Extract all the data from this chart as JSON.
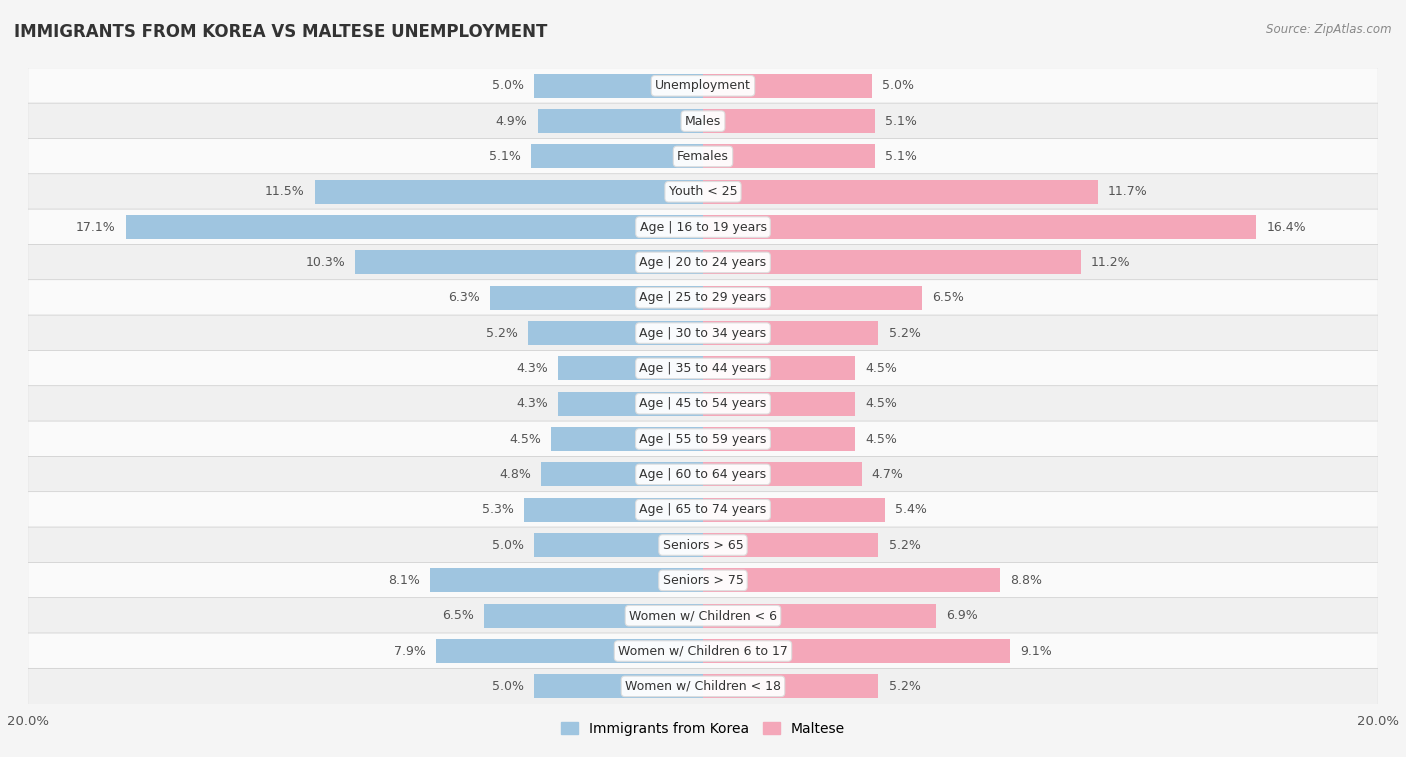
{
  "title": "IMMIGRANTS FROM KOREA VS MALTESE UNEMPLOYMENT",
  "source": "Source: ZipAtlas.com",
  "categories": [
    "Unemployment",
    "Males",
    "Females",
    "Youth < 25",
    "Age | 16 to 19 years",
    "Age | 20 to 24 years",
    "Age | 25 to 29 years",
    "Age | 30 to 34 years",
    "Age | 35 to 44 years",
    "Age | 45 to 54 years",
    "Age | 55 to 59 years",
    "Age | 60 to 64 years",
    "Age | 65 to 74 years",
    "Seniors > 65",
    "Seniors > 75",
    "Women w/ Children < 6",
    "Women w/ Children 6 to 17",
    "Women w/ Children < 18"
  ],
  "korea_values": [
    5.0,
    4.9,
    5.1,
    11.5,
    17.1,
    10.3,
    6.3,
    5.2,
    4.3,
    4.3,
    4.5,
    4.8,
    5.3,
    5.0,
    8.1,
    6.5,
    7.9,
    5.0
  ],
  "maltese_values": [
    5.0,
    5.1,
    5.1,
    11.7,
    16.4,
    11.2,
    6.5,
    5.2,
    4.5,
    4.5,
    4.5,
    4.7,
    5.4,
    5.2,
    8.8,
    6.9,
    9.1,
    5.2
  ],
  "korea_color": "#9fc5e0",
  "maltese_color": "#f4a7b9",
  "xlim": 20.0,
  "bar_height": 0.68,
  "bg_color": "#f5f5f5",
  "row_color_odd": "#f0f0f0",
  "row_color_even": "#fafafa",
  "label_fontsize": 9.0,
  "title_fontsize": 12,
  "value_fontsize": 9.0,
  "legend_fontsize": 10,
  "title_color": "#333333",
  "source_color": "#888888",
  "value_color": "#555555",
  "label_color": "#333333"
}
